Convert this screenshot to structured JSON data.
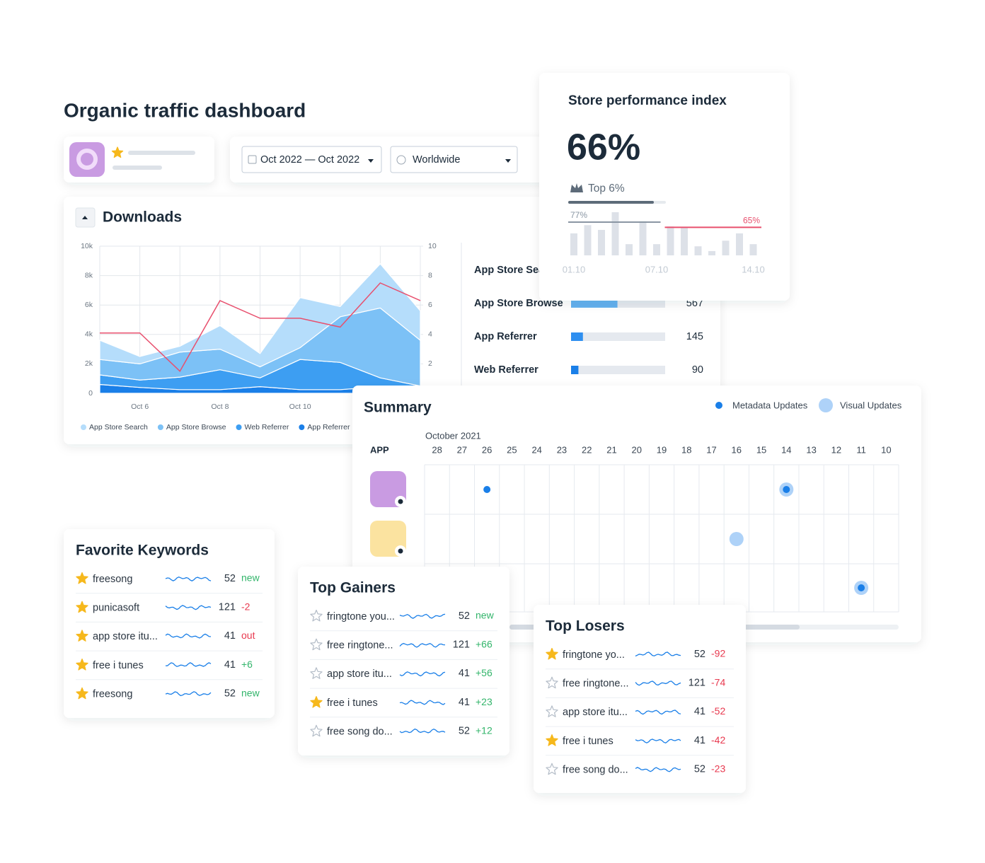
{
  "header": {
    "title": "Organic traffic dashboard"
  },
  "filters": {
    "date_range": "Oct 2022 — Oct 2022",
    "region": "Worldwide"
  },
  "chart_data": [
    {
      "type": "area",
      "stacked": true,
      "title": "Downloads",
      "categories": [
        null,
        "Oct 6",
        null,
        "Oct 8",
        null,
        "Oct 10",
        null,
        null,
        null
      ],
      "ylim": [
        0,
        10000
      ],
      "yticks": [
        0,
        {
          "value": 2000,
          "label": "2k"
        },
        {
          "value": 4000,
          "label": "4k"
        },
        {
          "value": 6000,
          "label": "6k"
        },
        {
          "value": 8000,
          "label": "8k"
        },
        {
          "value": 10000,
          "label": "10k"
        }
      ],
      "y2lim": [
        0,
        10
      ],
      "y2ticks": [
        2,
        4,
        6,
        8,
        10
      ],
      "grid": true,
      "series": [
        {
          "name": "App Store Search",
          "color": "#b5ddfb",
          "values": [
            1300,
            500,
            400,
            1600,
            900,
            3400,
            700,
            3000,
            2000
          ]
        },
        {
          "name": "App Store Browse",
          "color": "#7cc1f6",
          "values": [
            1050,
            1100,
            1700,
            1400,
            750,
            800,
            3100,
            4750,
            3100
          ]
        },
        {
          "name": "Web Referrer",
          "color": "#3d9ef2",
          "values": [
            650,
            500,
            850,
            1350,
            600,
            2050,
            1850,
            600,
            200
          ]
        },
        {
          "name": "App Referrer",
          "color": "#1a7fe8",
          "values": [
            600,
            400,
            250,
            250,
            450,
            250,
            250,
            450,
            300
          ]
        },
        {
          "type": "line",
          "axis": "y2",
          "color": "#e8506e",
          "values": [
            4.1,
            4.1,
            1.5,
            6.3,
            5.1,
            5.1,
            4.5,
            7.5,
            6.3
          ]
        }
      ]
    },
    {
      "type": "bar",
      "title": "Store performance index",
      "categories": [
        "01.10",
        null,
        null,
        null,
        null,
        null,
        "07.10",
        null,
        null,
        null,
        null,
        null,
        null,
        "14.10"
      ],
      "values": [
        51,
        70,
        59,
        100,
        26,
        79,
        26,
        67,
        64,
        21,
        10,
        34,
        51,
        26
      ],
      "color": "#dde1e8",
      "ylim": [
        0,
        100
      ],
      "reference_lines": [
        {
          "value": 77,
          "label": "77%",
          "color": "#8a96a3"
        },
        {
          "value": 65,
          "label": "65%",
          "color": "#e8506e"
        }
      ]
    }
  ],
  "traffic_sources": {
    "xlim": [
      0,
      1150
    ],
    "rows": [
      {
        "name": "App Store Search",
        "value": null,
        "color": "#64b2f0"
      },
      {
        "name": "App Store Browse",
        "value": 567,
        "color": "#64b2f0"
      },
      {
        "name": "App Referrer",
        "value": 145,
        "color": "#2f8ff0"
      },
      {
        "name": "Web Referrer",
        "value": 90,
        "color": "#1a7fe8"
      }
    ]
  },
  "store_performance": {
    "score": "66%",
    "rank": "Top 6%"
  },
  "summary": {
    "title": "Summary",
    "legend": [
      {
        "name": "Metadata Updates",
        "color": "#1a7fe8"
      },
      {
        "name": "Visual Updates",
        "color": "#aed2f8"
      }
    ],
    "month": "October 2021",
    "app_header": "APP",
    "days": [
      28,
      27,
      26,
      25,
      24,
      23,
      22,
      21,
      20,
      19,
      18,
      17,
      16,
      15,
      14,
      13,
      12,
      11,
      10
    ],
    "apps": [
      {
        "metadata": [
          26,
          14
        ],
        "visual": [
          14
        ]
      },
      {
        "visual": [
          16
        ]
      },
      {
        "metadata": [
          11
        ],
        "visual": [
          11
        ]
      }
    ]
  },
  "favorite_keywords": {
    "title": "Favorite Keywords",
    "rows": [
      {
        "keyword": "freesong",
        "value": 52,
        "change": "new",
        "starred": true,
        "change_color": "#33b56b"
      },
      {
        "keyword": "punicasoft",
        "value": 121,
        "change": "-2",
        "starred": true,
        "change_color": "#e8394f"
      },
      {
        "keyword": "app store itu...",
        "value": 41,
        "change": "out",
        "starred": true,
        "change_color": "#e8394f"
      },
      {
        "keyword": "free i tunes",
        "value": 41,
        "change": "+6",
        "starred": true,
        "change_color": "#33b56b"
      },
      {
        "keyword": "freesong",
        "value": 52,
        "change": "new",
        "starred": true,
        "change_color": "#33b56b"
      }
    ]
  },
  "top_gainers": {
    "title": "Top Gainers",
    "rows": [
      {
        "keyword": "fringtone you...",
        "value": 52,
        "change": "new",
        "starred": false,
        "change_color": "#33b56b"
      },
      {
        "keyword": "free ringtone...",
        "value": 121,
        "change": "+66",
        "starred": false,
        "change_color": "#33b56b"
      },
      {
        "keyword": "app store itu...",
        "value": 41,
        "change": "+56",
        "starred": false,
        "change_color": "#33b56b"
      },
      {
        "keyword": "free i tunes",
        "value": 41,
        "change": "+23",
        "starred": true,
        "change_color": "#33b56b"
      },
      {
        "keyword": "free song do...",
        "value": 52,
        "change": "+12",
        "starred": false,
        "change_color": "#33b56b"
      }
    ]
  },
  "top_losers": {
    "title": "Top Losers",
    "rows": [
      {
        "keyword": "fringtone yo...",
        "value": 52,
        "change": "-92",
        "starred": true,
        "change_color": "#e8394f"
      },
      {
        "keyword": "free ringtone...",
        "value": 121,
        "change": "-74",
        "starred": false,
        "change_color": "#e8394f"
      },
      {
        "keyword": "app store itu...",
        "value": 41,
        "change": "-52",
        "starred": false,
        "change_color": "#e8394f"
      },
      {
        "keyword": "free i tunes",
        "value": 41,
        "change": "-42",
        "starred": true,
        "change_color": "#e8394f"
      },
      {
        "keyword": "free song do...",
        "value": 52,
        "change": "-23",
        "starred": false,
        "change_color": "#e8394f"
      }
    ]
  }
}
